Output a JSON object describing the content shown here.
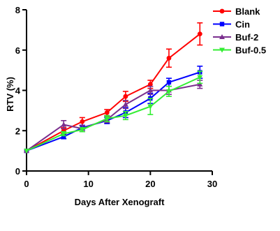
{
  "chart_data": {
    "type": "line",
    "title": "",
    "xlabel": "Days After Xenograft",
    "ylabel": "RTV (%)",
    "xlim": [
      0,
      30
    ],
    "ylim": [
      0,
      8
    ],
    "xticks": [
      0,
      10,
      20,
      30
    ],
    "yticks": [
      0,
      2,
      4,
      6,
      8
    ],
    "grid": false,
    "legend_position": "top-right",
    "series": [
      {
        "name": "Blank",
        "color": "#ff0000",
        "marker": "circle",
        "x": [
          0,
          6,
          9,
          13,
          16,
          20,
          23,
          28
        ],
        "y": [
          1.0,
          2.0,
          2.45,
          2.9,
          3.7,
          4.3,
          5.6,
          6.8
        ],
        "err": [
          0.0,
          0.15,
          0.2,
          0.15,
          0.25,
          0.2,
          0.45,
          0.55
        ]
      },
      {
        "name": "Cin",
        "color": "#0000ff",
        "marker": "square",
        "x": [
          0,
          6,
          9,
          13,
          16,
          20,
          23,
          28
        ],
        "y": [
          1.0,
          1.7,
          2.15,
          2.5,
          2.9,
          3.6,
          4.4,
          4.9
        ],
        "err": [
          0.0,
          0.1,
          0.12,
          0.15,
          0.25,
          0.25,
          0.2,
          0.3
        ]
      },
      {
        "name": "Buf-2",
        "color": "#7b2f8e",
        "marker": "triangle",
        "x": [
          0,
          6,
          9,
          13,
          16,
          20,
          23,
          28
        ],
        "y": [
          1.0,
          2.3,
          2.1,
          2.55,
          3.3,
          4.0,
          4.0,
          4.3
        ],
        "err": [
          0.0,
          0.2,
          0.15,
          0.15,
          0.2,
          0.2,
          0.2,
          0.2
        ]
      },
      {
        "name": "Buf-0.5",
        "color": "#33ee33",
        "marker": "triangle-down",
        "x": [
          0,
          6,
          9,
          13,
          16,
          20,
          23,
          28
        ],
        "y": [
          1.0,
          1.85,
          2.05,
          2.6,
          2.75,
          3.2,
          3.95,
          4.65
        ],
        "err": [
          0.0,
          0.1,
          0.1,
          0.15,
          0.2,
          0.4,
          0.25,
          0.3
        ]
      }
    ]
  }
}
